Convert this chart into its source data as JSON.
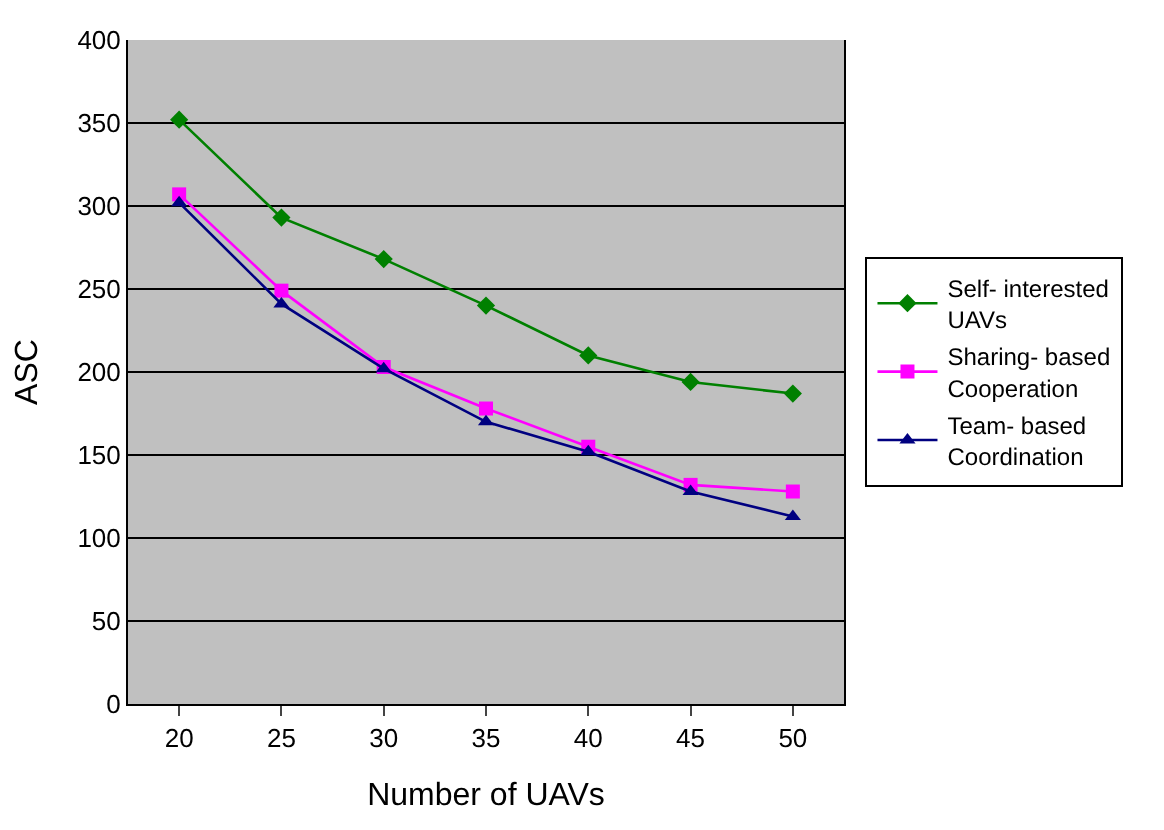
{
  "chart_data": {
    "type": "line",
    "xlabel": "Number of UAVs",
    "ylabel": "ASC",
    "categories": [
      "20",
      "25",
      "30",
      "35",
      "40",
      "45",
      "50"
    ],
    "series": [
      {
        "name": "Self- interested UAVs",
        "color": "#008000",
        "marker": "diamond",
        "values": [
          352,
          293,
          268,
          240,
          210,
          194,
          187
        ]
      },
      {
        "name": "Sharing- based Cooperation",
        "color": "#ff00ff",
        "marker": "square",
        "values": [
          307,
          249,
          203,
          178,
          155,
          132,
          128
        ]
      },
      {
        "name": "Team- based Coordination",
        "color": "#000080",
        "marker": "triangle",
        "values": [
          302,
          241,
          202,
          170,
          152,
          128,
          113
        ]
      }
    ],
    "ylim": [
      0,
      400
    ],
    "yticks": [
      0,
      50,
      100,
      150,
      200,
      250,
      300,
      350,
      400
    ],
    "grid": "y",
    "legend": "right",
    "line_style": "solid"
  }
}
